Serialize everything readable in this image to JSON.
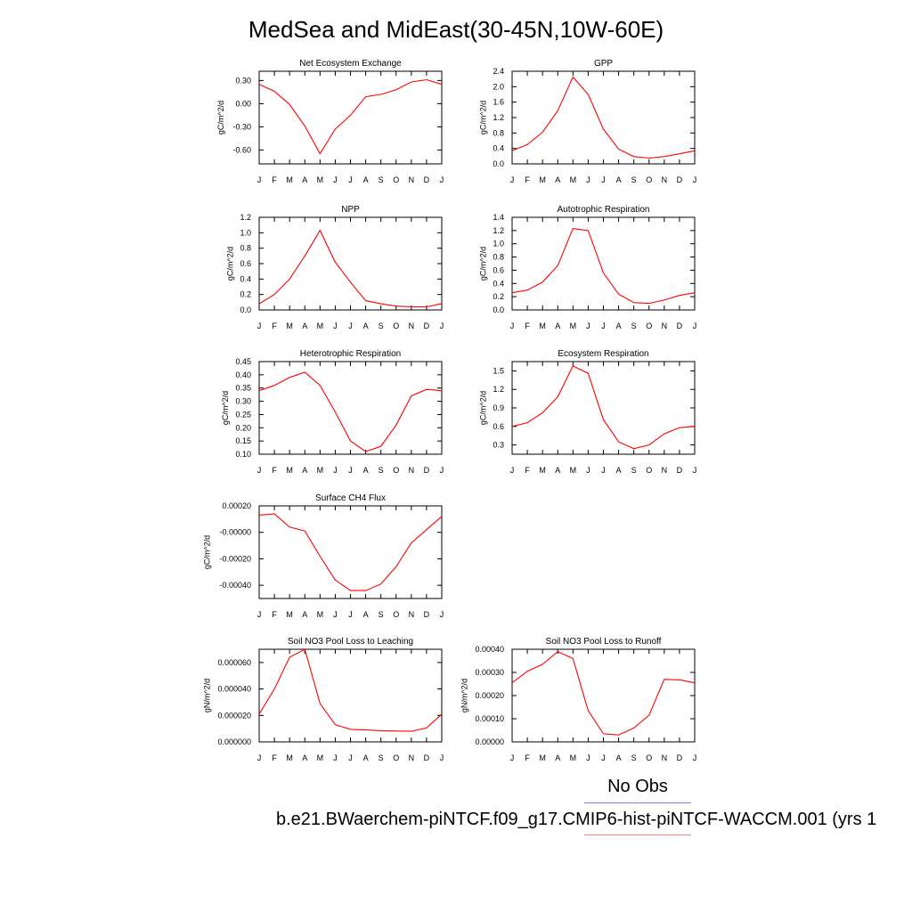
{
  "title": "MedSea and MidEast(30-45N,10W-60E)",
  "legend": {
    "obs_label": "No Obs",
    "obs_color": "#7f7fff",
    "model_label": "b.e21.BWaerchem-piNTCF.f09_g17.CMIP6-hist-piNTCF-WACCM.001 (yrs 1",
    "model_color": "#ff7f7f"
  },
  "series_color": "#ff0000",
  "chart_data": [
    {
      "type": "line",
      "title": "Net Ecosystem Exchange",
      "ylabel": "gC/m^2/d",
      "x": [
        "J",
        "F",
        "M",
        "A",
        "M",
        "J",
        "J",
        "A",
        "S",
        "O",
        "N",
        "D",
        "J"
      ],
      "y": [
        0.25,
        0.16,
        -0.01,
        -0.29,
        -0.65,
        -0.33,
        -0.15,
        0.09,
        0.12,
        0.18,
        0.28,
        0.31,
        0.25
      ],
      "ylim": [
        -0.78,
        0.42
      ],
      "yticks": [
        0.3,
        0.0,
        -0.3,
        -0.6
      ],
      "ytick_labels": [
        "0.30",
        "0.00",
        "-0.30",
        "-0.60"
      ]
    },
    {
      "type": "line",
      "title": "GPP",
      "ylabel": "gC/m^2/d",
      "x": [
        "J",
        "F",
        "M",
        "A",
        "M",
        "J",
        "J",
        "A",
        "S",
        "O",
        "N",
        "D",
        "J"
      ],
      "y": [
        0.34,
        0.5,
        0.82,
        1.38,
        2.25,
        1.8,
        0.9,
        0.38,
        0.19,
        0.15,
        0.19,
        0.26,
        0.34
      ],
      "ylim": [
        0,
        2.4
      ],
      "yticks": [
        0,
        0.4,
        0.8,
        1.2,
        1.6,
        2.0,
        2.4
      ],
      "ytick_labels": [
        "0.0",
        "0.4",
        "0.8",
        "1.2",
        "1.6",
        "2.0",
        "2.4"
      ]
    },
    {
      "type": "line",
      "title": "NPP",
      "ylabel": "gC/m^2/d",
      "x": [
        "J",
        "F",
        "M",
        "A",
        "M",
        "J",
        "J",
        "A",
        "S",
        "O",
        "N",
        "D",
        "J"
      ],
      "y": [
        0.08,
        0.2,
        0.4,
        0.7,
        1.03,
        0.62,
        0.36,
        0.12,
        0.08,
        0.05,
        0.04,
        0.04,
        0.08
      ],
      "ylim": [
        0,
        1.2
      ],
      "yticks": [
        0,
        0.2,
        0.4,
        0.6,
        0.8,
        1.0,
        1.2
      ],
      "ytick_labels": [
        "0.0",
        "0.2",
        "0.4",
        "0.6",
        "0.8",
        "1.0",
        "1.2"
      ]
    },
    {
      "type": "line",
      "title": "Autotrophic Respiration",
      "ylabel": "gC/m^2/d",
      "x": [
        "J",
        "F",
        "M",
        "A",
        "M",
        "J",
        "J",
        "A",
        "S",
        "O",
        "N",
        "D",
        "J"
      ],
      "y": [
        0.26,
        0.3,
        0.42,
        0.67,
        1.23,
        1.2,
        0.56,
        0.24,
        0.11,
        0.1,
        0.15,
        0.22,
        0.26
      ],
      "ylim": [
        0,
        1.4
      ],
      "yticks": [
        0,
        0.2,
        0.4,
        0.6,
        0.8,
        1.0,
        1.2,
        1.4
      ],
      "ytick_labels": [
        "0.0",
        "0.2",
        "0.4",
        "0.6",
        "0.8",
        "1.0",
        "1.2",
        "1.4"
      ]
    },
    {
      "type": "line",
      "title": "Heterotrophic Respiration",
      "ylabel": "gC/m^2/d",
      "x": [
        "J",
        "F",
        "M",
        "A",
        "M",
        "J",
        "J",
        "A",
        "S",
        "O",
        "N",
        "D",
        "J"
      ],
      "y": [
        0.34,
        0.36,
        0.39,
        0.41,
        0.36,
        0.26,
        0.15,
        0.11,
        0.13,
        0.21,
        0.32,
        0.345,
        0.34
      ],
      "ylim": [
        0.1,
        0.45
      ],
      "yticks": [
        0.1,
        0.15,
        0.2,
        0.25,
        0.3,
        0.35,
        0.4,
        0.45
      ],
      "ytick_labels": [
        "0.10",
        "0.15",
        "0.20",
        "0.25",
        "0.30",
        "0.35",
        "0.40",
        "0.45"
      ]
    },
    {
      "type": "line",
      "title": "Ecosystem Respiration",
      "ylabel": "gC/m^2/d",
      "x": [
        "J",
        "F",
        "M",
        "A",
        "M",
        "J",
        "J",
        "A",
        "S",
        "O",
        "N",
        "D",
        "J"
      ],
      "y": [
        0.6,
        0.66,
        0.82,
        1.08,
        1.58,
        1.46,
        0.71,
        0.35,
        0.24,
        0.3,
        0.48,
        0.58,
        0.6
      ],
      "ylim": [
        0.15,
        1.65
      ],
      "yticks": [
        0.3,
        0.6,
        0.9,
        1.2,
        1.5
      ],
      "ytick_labels": [
        "0.3",
        "0.6",
        "0.9",
        "1.2",
        "1.5"
      ]
    },
    {
      "type": "line",
      "title": "Surface CH4 Flux",
      "ylabel": "gC/m^2/d",
      "x": [
        "J",
        "F",
        "M",
        "A",
        "M",
        "J",
        "J",
        "A",
        "S",
        "O",
        "N",
        "D",
        "J"
      ],
      "y": [
        0.00013,
        0.00014,
        4e-05,
        1e-05,
        -0.00018,
        -0.00036,
        -0.00044,
        -0.00044,
        -0.00039,
        -0.00026,
        -8e-05,
        2e-05,
        0.00012
      ],
      "ylim": [
        -0.0005,
        0.0002
      ],
      "yticks": [
        0.0002,
        0,
        -0.0002,
        -0.0004
      ],
      "ytick_labels": [
        "0.00020",
        "-0.00000",
        "-0.00020",
        "-0.00040"
      ]
    },
    {
      "type": "line",
      "title": "Soil NO3 Pool Loss to Leaching",
      "ylabel": "gN/m^2/d",
      "x": [
        "J",
        "F",
        "M",
        "A",
        "M",
        "J",
        "J",
        "A",
        "S",
        "O",
        "N",
        "D",
        "J"
      ],
      "y": [
        2.1e-05,
        4e-05,
        6.4e-05,
        7e-05,
        2.9e-05,
        1.3e-05,
        9.5e-06,
        9e-06,
        8.5e-06,
        8.2e-06,
        8e-06,
        1.05e-05,
        2.1e-05
      ],
      "ylim": [
        0,
        7e-05
      ],
      "yticks": [
        0,
        2e-05,
        4e-05,
        6e-05
      ],
      "ytick_labels": [
        "0.000000",
        "0.000020",
        "0.000040",
        "0.000060"
      ]
    },
    {
      "type": "line",
      "title": "Soil NO3 Pool Loss to Runoff",
      "ylabel": "gN/m^2/d",
      "x": [
        "J",
        "F",
        "M",
        "A",
        "M",
        "J",
        "J",
        "A",
        "S",
        "O",
        "N",
        "D",
        "J"
      ],
      "y": [
        0.000255,
        0.000305,
        0.000335,
        0.00039,
        0.00036,
        0.000135,
        3.5e-05,
        3e-05,
        6e-05,
        0.000115,
        0.00027,
        0.000268,
        0.000255
      ],
      "ylim": [
        0,
        0.0004
      ],
      "yticks": [
        0,
        0.0001,
        0.0002,
        0.0003,
        0.0004
      ],
      "ytick_labels": [
        "0.00000",
        "0.00010",
        "0.00020",
        "0.00030",
        "0.00040"
      ]
    }
  ]
}
